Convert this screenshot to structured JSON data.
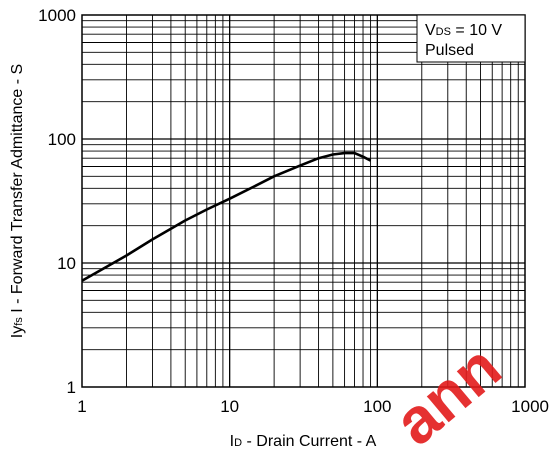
{
  "chart_data": {
    "type": "line",
    "scale": "log-log",
    "xlabel_main": "I",
    "xlabel_sub": "D",
    "xlabel_rest": " - Drain Current - A",
    "ylabel_main": "Iy",
    "ylabel_sub": "fs",
    "ylabel_rest": " I - Forward Transfer Admittance - S",
    "xlim": [
      1,
      1000
    ],
    "ylim": [
      1,
      1000
    ],
    "x_tick_labels": [
      "1",
      "10",
      "100",
      "1000"
    ],
    "y_tick_labels": [
      "1",
      "10",
      "100",
      "1000"
    ],
    "grid": true,
    "annotation": {
      "line1_main": "V",
      "line1_sub": "DS",
      "line1_rest": " = 10 V",
      "line2": "Pulsed"
    },
    "series": [
      {
        "x": [
          1,
          2,
          3,
          5,
          7,
          10,
          15,
          20,
          30,
          40,
          50,
          60,
          70,
          80,
          90
        ],
        "y": [
          7.2,
          11.5,
          15.5,
          22,
          27,
          33,
          42,
          50,
          61,
          70,
          75,
          77,
          77,
          72,
          67
        ]
      }
    ]
  },
  "watermark": "ann"
}
